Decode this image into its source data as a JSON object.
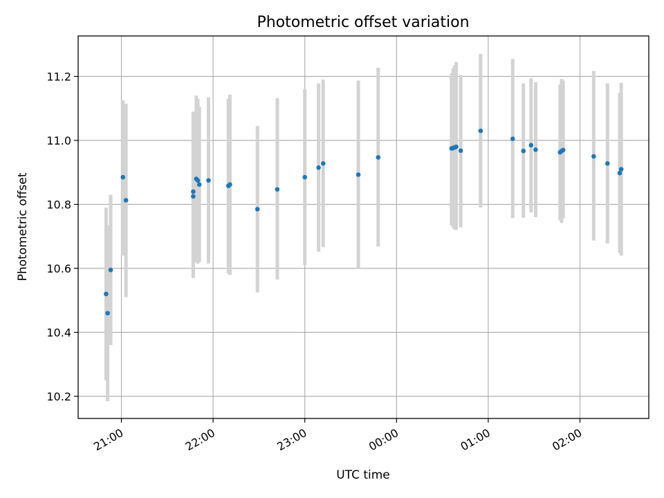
{
  "chart_data": {
    "type": "scatter",
    "title": "Photometric offset variation",
    "xlabel": "UTC time",
    "ylabel": "Photometric offset",
    "x_ticks": [
      "21:00",
      "22:00",
      "23:00",
      "00:00",
      "01:00",
      "02:00"
    ],
    "y_ticks": [
      "10.2",
      "10.4",
      "10.6",
      "10.8",
      "11.0",
      "11.2"
    ],
    "grid": true,
    "colors": {
      "points": "#1f77b4",
      "errorbars": "#d3d3d3",
      "grid": "#b0b0b0"
    },
    "series": [
      {
        "points": [
          {
            "x": "20:50",
            "y": 10.52,
            "err_low": 10.25,
            "err_high": 10.79
          },
          {
            "x": "20:51",
            "y": 10.46,
            "err_low": 10.185,
            "err_high": 10.735
          },
          {
            "x": "20:53",
            "y": 10.595,
            "err_low": 10.36,
            "err_high": 10.83
          },
          {
            "x": "21:01",
            "y": 10.885,
            "err_low": 10.64,
            "err_high": 11.125
          },
          {
            "x": "21:03",
            "y": 10.813,
            "err_low": 10.51,
            "err_high": 11.115
          },
          {
            "x": "21:47",
            "y": 10.825,
            "err_low": 10.57,
            "err_high": 11.09
          },
          {
            "x": "21:47",
            "y": 10.84,
            "err_low": 10.59,
            "err_high": 11.09
          },
          {
            "x": "21:49",
            "y": 10.88,
            "err_low": 10.62,
            "err_high": 11.14
          },
          {
            "x": "21:50",
            "y": 10.875,
            "err_low": 10.615,
            "err_high": 11.13
          },
          {
            "x": "21:51",
            "y": 10.862,
            "err_low": 10.62,
            "err_high": 11.105
          },
          {
            "x": "21:57",
            "y": 10.875,
            "err_low": 10.615,
            "err_high": 11.135
          },
          {
            "x": "22:10",
            "y": 10.858,
            "err_low": 10.585,
            "err_high": 11.13
          },
          {
            "x": "22:11",
            "y": 10.862,
            "err_low": 10.58,
            "err_high": 11.143
          },
          {
            "x": "22:29",
            "y": 10.785,
            "err_low": 10.525,
            "err_high": 11.045
          },
          {
            "x": "22:42",
            "y": 10.847,
            "err_low": 10.565,
            "err_high": 11.132
          },
          {
            "x": "23:00",
            "y": 10.885,
            "err_low": 10.61,
            "err_high": 11.16
          },
          {
            "x": "23:09",
            "y": 10.915,
            "err_low": 10.652,
            "err_high": 11.178
          },
          {
            "x": "23:12",
            "y": 10.928,
            "err_low": 10.666,
            "err_high": 11.19
          },
          {
            "x": "23:35",
            "y": 10.893,
            "err_low": 10.6,
            "err_high": 11.187
          },
          {
            "x": "23:48",
            "y": 10.947,
            "err_low": 10.668,
            "err_high": 11.227
          },
          {
            "x": "00:36",
            "y": 10.975,
            "err_low": 10.735,
            "err_high": 11.21
          },
          {
            "x": "00:37",
            "y": 10.976,
            "err_low": 10.728,
            "err_high": 11.225
          },
          {
            "x": "00:38",
            "y": 10.978,
            "err_low": 10.722,
            "err_high": 11.235
          },
          {
            "x": "00:39",
            "y": 10.98,
            "err_low": 10.72,
            "err_high": 11.245
          },
          {
            "x": "00:42",
            "y": 10.968,
            "err_low": 10.728,
            "err_high": 11.205
          },
          {
            "x": "00:55",
            "y": 11.03,
            "err_low": 10.79,
            "err_high": 11.27
          },
          {
            "x": "01:16",
            "y": 11.005,
            "err_low": 10.757,
            "err_high": 11.255
          },
          {
            "x": "01:23",
            "y": 10.967,
            "err_low": 10.758,
            "err_high": 11.178
          },
          {
            "x": "01:28",
            "y": 10.985,
            "err_low": 10.775,
            "err_high": 11.194
          },
          {
            "x": "01:31",
            "y": 10.971,
            "err_low": 10.76,
            "err_high": 11.182
          },
          {
            "x": "01:47",
            "y": 10.963,
            "err_low": 10.75,
            "err_high": 11.175
          },
          {
            "x": "01:48",
            "y": 10.967,
            "err_low": 10.742,
            "err_high": 11.192
          },
          {
            "x": "01:49",
            "y": 10.97,
            "err_low": 10.757,
            "err_high": 11.187
          },
          {
            "x": "02:09",
            "y": 10.95,
            "err_low": 10.687,
            "err_high": 11.217
          },
          {
            "x": "02:18",
            "y": 10.928,
            "err_low": 10.678,
            "err_high": 11.178
          },
          {
            "x": "02:26",
            "y": 10.898,
            "err_low": 10.648,
            "err_high": 11.148
          },
          {
            "x": "02:27",
            "y": 10.91,
            "err_low": 10.64,
            "err_high": 11.18
          }
        ]
      }
    ]
  }
}
